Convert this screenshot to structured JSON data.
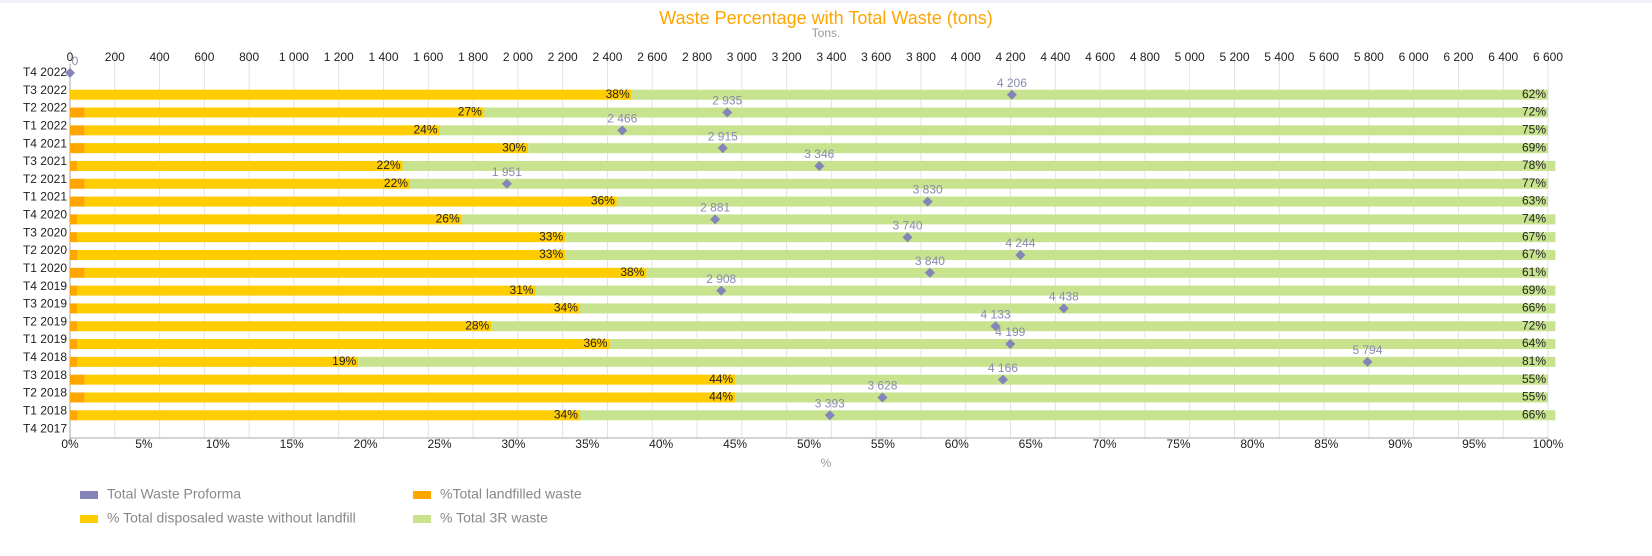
{
  "chart_data": {
    "type": "bar",
    "orientation": "horizontal",
    "stacked": true,
    "title": "Waste Percentage with Total Waste (tons)",
    "x_label": "%",
    "x2_label": "Tons.",
    "categories": [
      "T4 2022",
      "T3 2022",
      "T2 2022",
      "T1 2022",
      "T4 2021",
      "T3 2021",
      "T2 2021",
      "T1 2021",
      "T4 2020",
      "T3 2020",
      "T2 2020",
      "T1 2020",
      "T4 2019",
      "T3 2019",
      "T2 2019",
      "T1 2019",
      "T4 2018",
      "T3 2018",
      "T2 2018",
      "T1 2018",
      "T4 2017"
    ],
    "xlim": [
      0,
      100
    ],
    "xticks": [
      {
        "value": 0,
        "label": "0%"
      },
      {
        "value": 5,
        "label": "5%"
      },
      {
        "value": 10,
        "label": "10%"
      },
      {
        "value": 15,
        "label": "15%"
      },
      {
        "value": 20,
        "label": "20%"
      },
      {
        "value": 25,
        "label": "25%"
      },
      {
        "value": 30,
        "label": "30%"
      },
      {
        "value": 35,
        "label": "35%"
      },
      {
        "value": 40,
        "label": "40%"
      },
      {
        "value": 45,
        "label": "45%"
      },
      {
        "value": 50,
        "label": "50%"
      },
      {
        "value": 55,
        "label": "55%"
      },
      {
        "value": 60,
        "label": "60%"
      },
      {
        "value": 65,
        "label": "65%"
      },
      {
        "value": 70,
        "label": "70%"
      },
      {
        "value": 75,
        "label": "75%"
      },
      {
        "value": 80,
        "label": "80%"
      },
      {
        "value": 85,
        "label": "85%"
      },
      {
        "value": 90,
        "label": "90%"
      },
      {
        "value": 95,
        "label": "95%"
      },
      {
        "value": 100,
        "label": "100%"
      }
    ],
    "x2lim": [
      0,
      6600
    ],
    "x2ticks": [
      0,
      200,
      400,
      600,
      800,
      {
        "value": 1000,
        "label": "1 000"
      },
      {
        "value": 1200,
        "label": "1 200"
      },
      {
        "value": 1400,
        "label": "1 400"
      },
      {
        "value": 1600,
        "label": "1 600"
      },
      {
        "value": 1800,
        "label": "1 800"
      },
      {
        "value": 2000,
        "label": "2 000"
      },
      {
        "value": 2200,
        "label": "2 200"
      },
      {
        "value": 2400,
        "label": "2 400"
      },
      {
        "value": 2600,
        "label": "2 600"
      },
      {
        "value": 2800,
        "label": "2 800"
      },
      {
        "value": 3000,
        "label": "3 000"
      },
      {
        "value": 3200,
        "label": "3 200"
      },
      {
        "value": 3400,
        "label": "3 400"
      },
      {
        "value": 3600,
        "label": "3 600"
      },
      {
        "value": 3800,
        "label": "3 800"
      },
      {
        "value": 4000,
        "label": "4 000"
      },
      {
        "value": 4200,
        "label": "4 200"
      },
      {
        "value": 4400,
        "label": "4 400"
      },
      {
        "value": 4600,
        "label": "4 600"
      },
      {
        "value": 4800,
        "label": "4 800"
      },
      {
        "value": 5000,
        "label": "5 000"
      },
      {
        "value": 5200,
        "label": "5 200"
      },
      {
        "value": 5400,
        "label": "5 400"
      },
      {
        "value": 5600,
        "label": "5 600"
      },
      {
        "value": 5800,
        "label": "5 800"
      },
      {
        "value": 6000,
        "label": "6 000"
      },
      {
        "value": 6200,
        "label": "6 200"
      },
      {
        "value": 6400,
        "label": "6 400"
      },
      {
        "value": 6600,
        "label": "6 600"
      }
    ],
    "grid": true,
    "legend": "bottom-left",
    "series": [
      {
        "name": "Total Waste Proforma",
        "type": "scatter",
        "axis": "x2",
        "color": "#8484b8",
        "values": [
          0,
          4206,
          2935,
          2466,
          2915,
          3346,
          1951,
          3830,
          2881,
          3740,
          4244,
          3840,
          2908,
          4438,
          4133,
          4199,
          5794,
          4166,
          3628,
          3393,
          null
        ],
        "value_labels": [
          "0",
          "4 206",
          "2 935",
          "2 466",
          "2 915",
          "3 346",
          "1 951",
          "3 830",
          "2 881",
          "3 740",
          "4 244",
          "3 840",
          "2 908",
          "4 438",
          "4 133",
          "4 199",
          "5 794",
          "4 166",
          "3 628",
          "3 393",
          null
        ]
      },
      {
        "name": "%Total landfilled waste",
        "color": "#ffa500",
        "values": [
          null,
          0,
          1,
          1,
          1,
          0.5,
          1,
          1,
          0.5,
          0.5,
          0.5,
          1,
          0.5,
          0.5,
          0.5,
          0.5,
          0.5,
          1,
          1,
          0.5,
          null
        ],
        "value_labels": [
          null,
          "0",
          null,
          null,
          null,
          null,
          null,
          null,
          null,
          null,
          null,
          null,
          null,
          null,
          null,
          null,
          null,
          null,
          null,
          null,
          null
        ]
      },
      {
        "name": "% Total disposaled waste without landfill",
        "color": "#ffcc00",
        "values": [
          null,
          38,
          27,
          24,
          30,
          22,
          22,
          36,
          26,
          33,
          33,
          38,
          31,
          34,
          28,
          36,
          19,
          44,
          44,
          34,
          null
        ],
        "value_labels": [
          null,
          "38%",
          "27%",
          "24%",
          "30%",
          "22%",
          "22%",
          "36%",
          "26%",
          "33%",
          "33%",
          "38%",
          "31%",
          "34%",
          "28%",
          "36%",
          "19%",
          "44%",
          "44%",
          "34%",
          null
        ]
      },
      {
        "name": "% Total 3R waste",
        "color": "#c8e38e",
        "values": [
          null,
          62,
          72,
          75,
          69,
          78,
          77,
          63,
          74,
          67,
          67,
          61,
          69,
          66,
          72,
          64,
          81,
          55,
          55,
          66,
          null
        ],
        "value_labels": [
          null,
          "62%",
          "72%",
          "75%",
          "69%",
          "78%",
          "77%",
          "63%",
          "74%",
          "67%",
          "67%",
          "61%",
          "69%",
          "66%",
          "72%",
          "64%",
          "81%",
          "55%",
          "55%",
          "66%",
          null
        ]
      }
    ]
  }
}
